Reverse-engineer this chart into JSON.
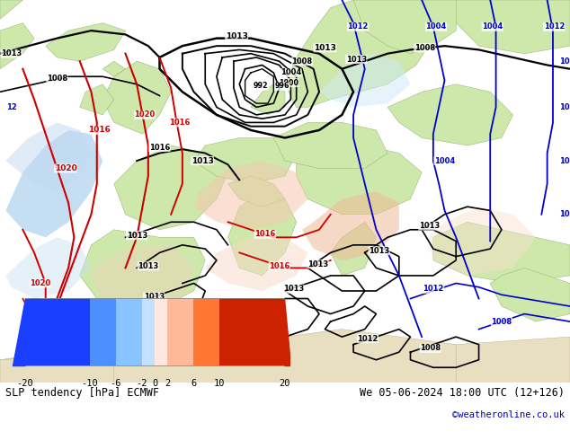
{
  "title_left": "SLP tendency [hPa] ECMWF",
  "title_right": "We 05-06-2024 18:00 UTC (12+126)",
  "credit": "©weatheronline.co.uk",
  "colorbar_bounds": [
    -20,
    -10,
    -6,
    -2,
    0,
    2,
    6,
    10,
    20
  ],
  "colorbar_colors": [
    "#1a3fff",
    "#4d8fff",
    "#88c4ff",
    "#c2e0ff",
    "#ffe8e0",
    "#ffb899",
    "#ff7733",
    "#cc2200"
  ],
  "map_bg_sea": "#c5e5f5",
  "map_bg_land_green": "#cde8aa",
  "map_bg_land_light": "#e8dfc0",
  "fig_width": 6.34,
  "fig_height": 4.9,
  "dpi": 100
}
